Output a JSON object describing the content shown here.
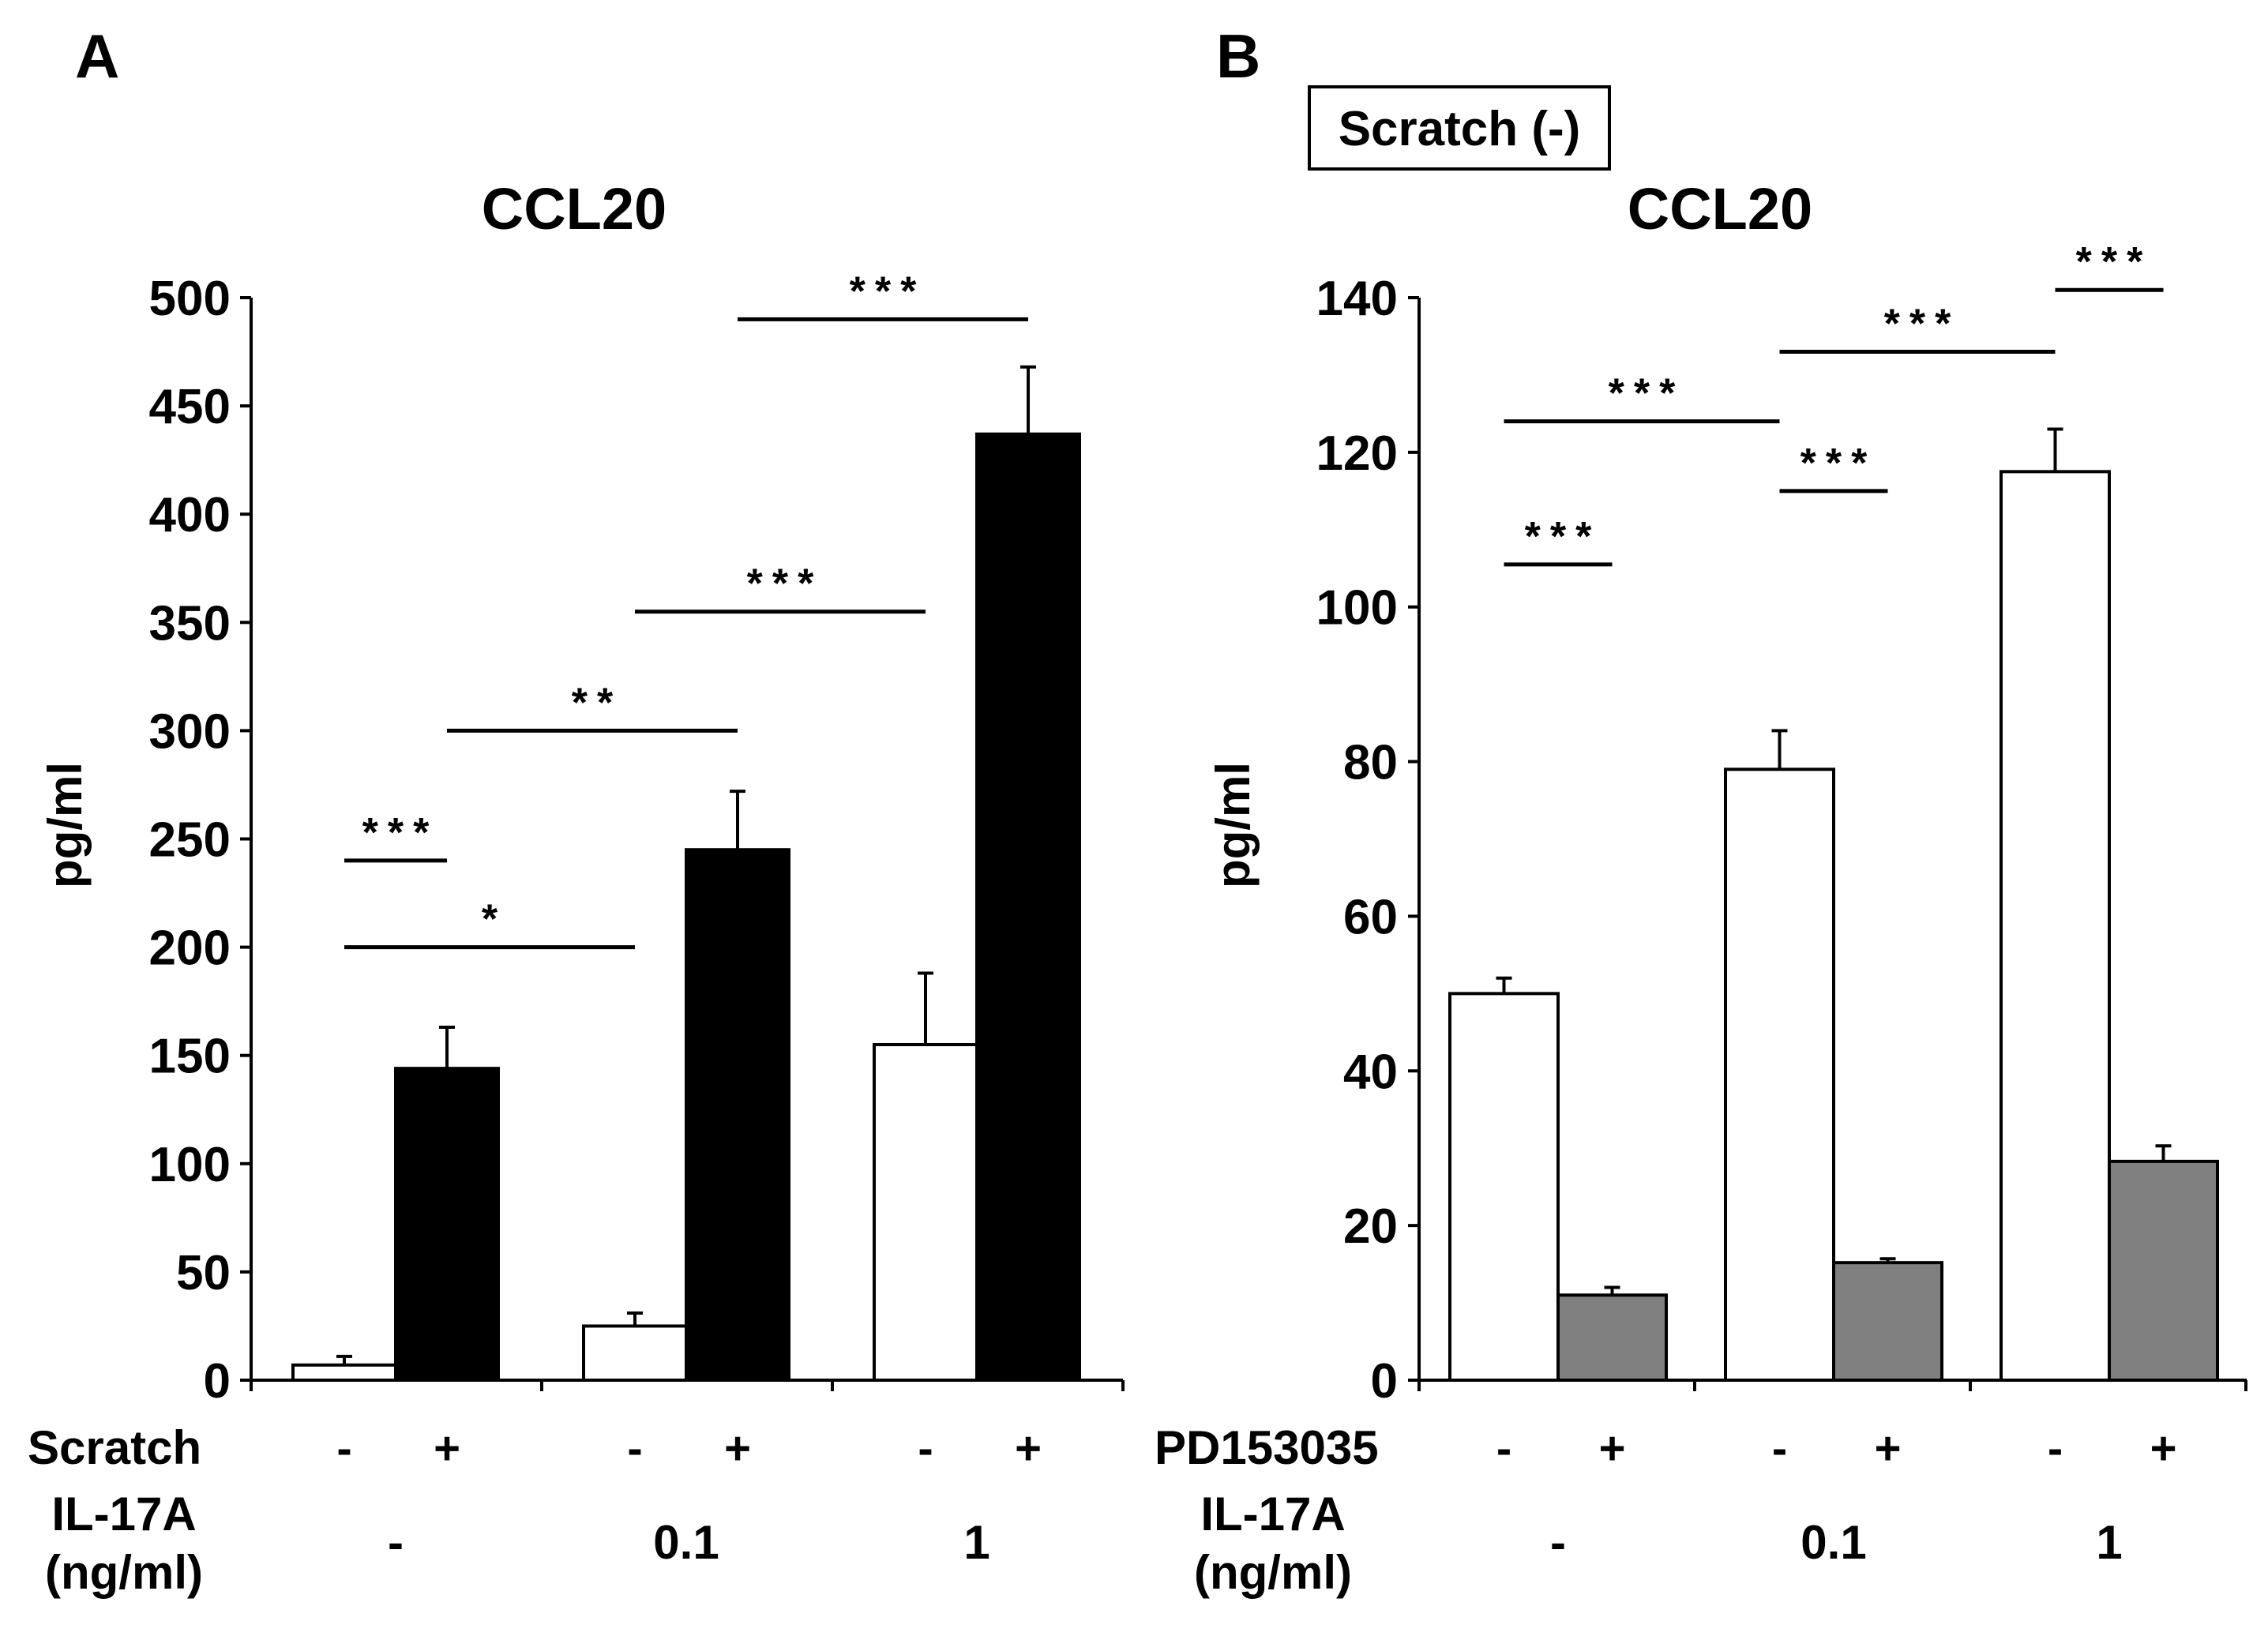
{
  "chart_data": [
    {
      "type": "bar",
      "panel": "A",
      "title": "CCL20",
      "ylabel": "pg/ml",
      "ylim": [
        0,
        500
      ],
      "yticks": [
        "0",
        "50",
        "100",
        "150",
        "200",
        "250",
        "300",
        "350",
        "400",
        "450",
        "500"
      ],
      "row1_label": "Scratch",
      "row1_values": [
        "-",
        "+",
        "-",
        "+",
        "-",
        "+"
      ],
      "row2_label": [
        "IL-17A",
        "(ng/ml)"
      ],
      "groups": [
        "-",
        "0.1",
        "1"
      ],
      "series": [
        {
          "name": "Scratch -",
          "color": "#ffffff",
          "values": [
            7,
            25,
            155
          ],
          "errors": [
            4,
            6,
            33
          ]
        },
        {
          "name": "Scratch +",
          "color": "#000000",
          "values": [
            144,
            245,
            437
          ],
          "errors": [
            19,
            27,
            31
          ]
        }
      ],
      "significance": [
        {
          "label": "***",
          "from": "g1s1",
          "to": "g1s2",
          "y": 240
        },
        {
          "label": "*",
          "from": "g1s1",
          "to": "g2s1",
          "y": 200
        },
        {
          "label": "**",
          "from": "g1s2",
          "to": "g2s2",
          "y": 300
        },
        {
          "label": "***",
          "from": "g2s1",
          "to": "g3s1",
          "y": 355
        },
        {
          "label": "***",
          "from": "g2s2",
          "to": "g3s2",
          "y": 490
        }
      ]
    },
    {
      "type": "bar",
      "panel": "B",
      "title": "CCL20",
      "condition_label": "Scratch (-)",
      "ylabel": "pg/ml",
      "ylim": [
        0,
        140
      ],
      "yticks": [
        "0",
        "20",
        "40",
        "60",
        "80",
        "100",
        "120",
        "140"
      ],
      "row1_label": "PD153035",
      "row1_values": [
        "-",
        "+",
        "-",
        "+",
        "-",
        "+"
      ],
      "row2_label": [
        "IL-17A",
        "(ng/ml)"
      ],
      "groups": [
        "-",
        "0.1",
        "1"
      ],
      "series": [
        {
          "name": "PD153035 -",
          "color": "#ffffff",
          "values": [
            50,
            79,
            117.5
          ],
          "errors": [
            2,
            5,
            5.5
          ]
        },
        {
          "name": "PD153035 +",
          "color": "#808080",
          "values": [
            11,
            15.2,
            28.3
          ],
          "errors": [
            1,
            0.5,
            2
          ]
        }
      ],
      "significance": [
        {
          "label": "***",
          "from": "g1s1",
          "to": "g1s2",
          "y": 105.5
        },
        {
          "label": "***",
          "from": "g1s1",
          "to": "g2s1",
          "y": 124
        },
        {
          "label": "***",
          "from": "g2s1",
          "to": "g2s2",
          "y": 115
        },
        {
          "label": "***",
          "from": "g2s1",
          "to": "g3s1",
          "y": 133
        },
        {
          "label": "***",
          "from": "g3s1",
          "to": "g3s2",
          "y": 141
        }
      ]
    }
  ]
}
